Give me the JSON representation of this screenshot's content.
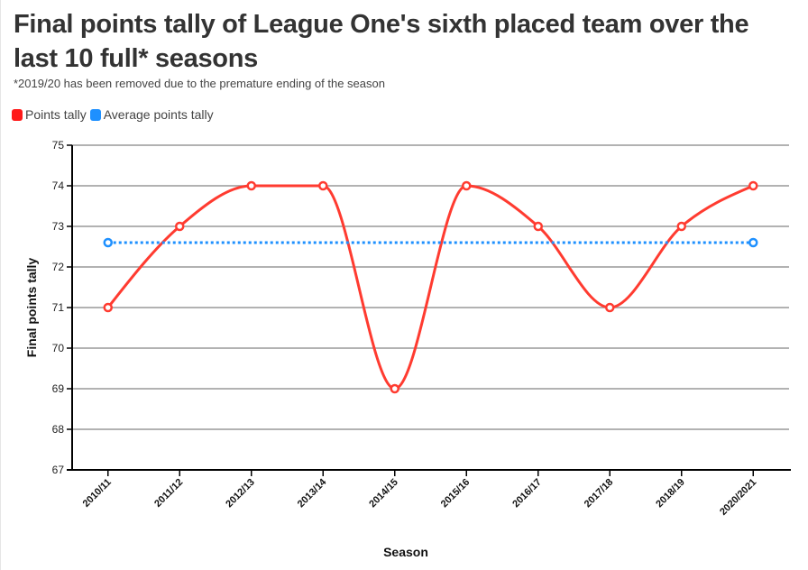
{
  "chart_data": {
    "type": "line",
    "title": "Final points tally of League One's sixth placed team over the last 10 full* seasons",
    "subtitle": "*2019/20 has been removed due to the premature ending of the season",
    "xlabel": "Season",
    "ylabel": "Final points tally",
    "ylim": [
      67,
      75
    ],
    "yticks": [
      "67",
      "68",
      "69",
      "70",
      "71",
      "72",
      "73",
      "74",
      "75"
    ],
    "categories": [
      "2010/11",
      "2011/12",
      "2012/13",
      "2013/14",
      "2014/15",
      "2015/16",
      "2016/17",
      "2017/18",
      "2018/19",
      "2020/2021"
    ],
    "grid": true,
    "legend_placement": "top-left",
    "series": [
      {
        "name": "Points tally",
        "color": "#ff3b30",
        "values": [
          71,
          73,
          74,
          74,
          69,
          74,
          73,
          71,
          73,
          74
        ]
      },
      {
        "name": "Average points tally",
        "color": "#1e90ff",
        "style": "dotted",
        "values": [
          72.6,
          null,
          null,
          null,
          null,
          null,
          null,
          null,
          null,
          72.6
        ]
      }
    ]
  }
}
